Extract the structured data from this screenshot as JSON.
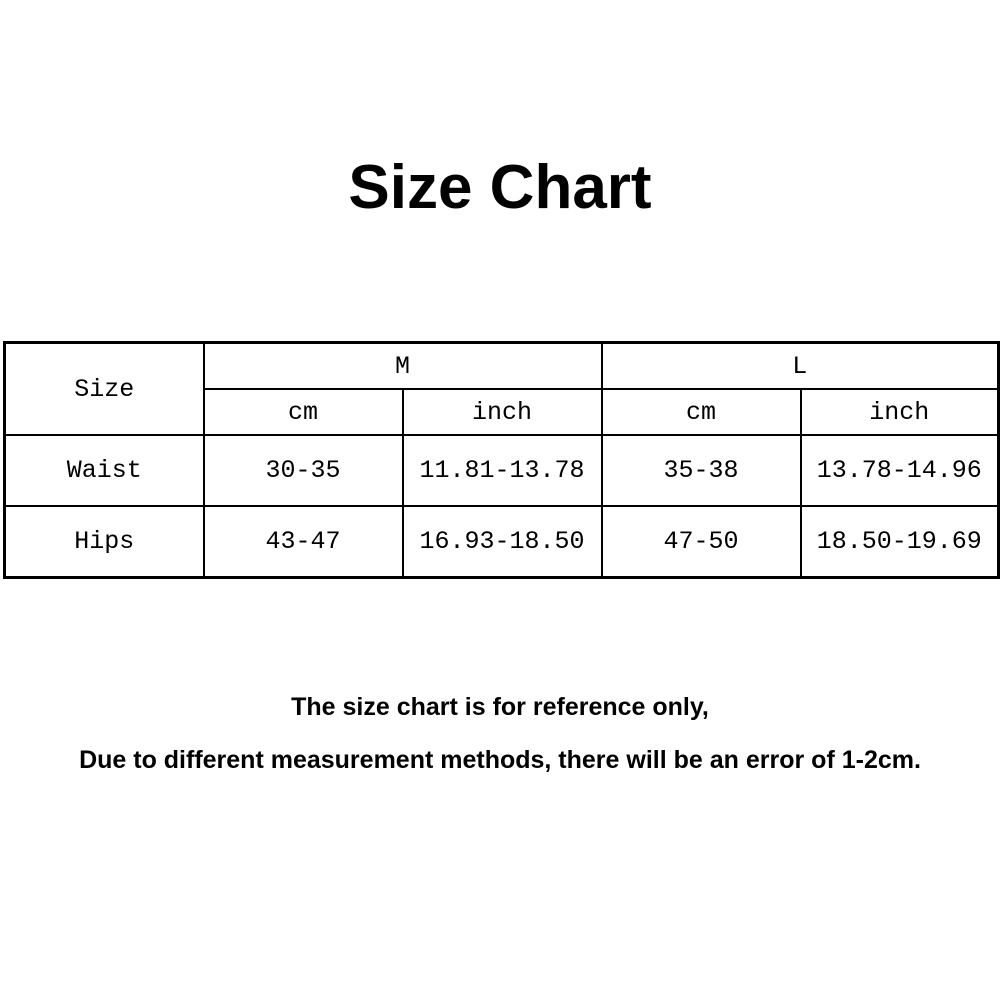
{
  "title": "Size Chart",
  "table": {
    "corner": "Size",
    "groups": [
      "M",
      "L"
    ],
    "units": [
      "cm",
      "inch",
      "cm",
      "inch"
    ],
    "rows": [
      {
        "label": "Waist",
        "values": [
          "30-35",
          "11.81-13.78",
          "35-38",
          "13.78-14.96"
        ]
      },
      {
        "label": "Hips",
        "values": [
          "43-47",
          "16.93-18.50",
          "47-50",
          "18.50-19.69"
        ]
      }
    ]
  },
  "notes": [
    "The size chart is for reference only,",
    "Due to different measurement methods, there will be an error of 1-2cm."
  ]
}
